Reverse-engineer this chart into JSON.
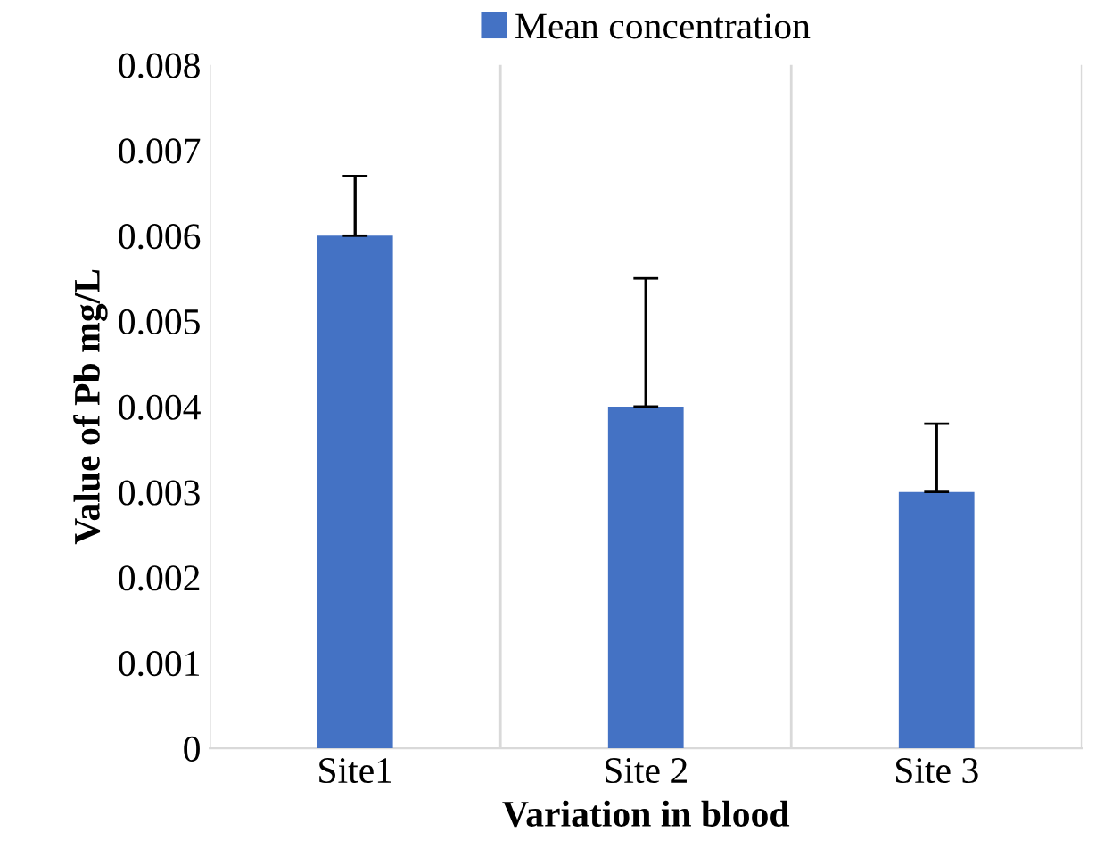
{
  "chart_data": {
    "type": "bar",
    "xlabel": "Variation in blood",
    "ylabel": "Value of Pb mg/L",
    "categories": [
      "Site1",
      "Site 2",
      "Site 3"
    ],
    "series": [
      {
        "name": "Mean concentration",
        "color": "#4472c4",
        "values": [
          0.006,
          0.004,
          0.003
        ],
        "errors": [
          [
            0.006,
            0.0067
          ],
          [
            0.004,
            0.0055
          ],
          [
            0.003,
            0.0038
          ]
        ]
      }
    ],
    "ylim": [
      0,
      0.008
    ],
    "yticks": [
      0,
      0.001,
      0.002,
      0.003,
      0.004,
      0.005,
      0.006,
      0.007,
      0.008
    ],
    "grid": "x",
    "legend": "top"
  }
}
